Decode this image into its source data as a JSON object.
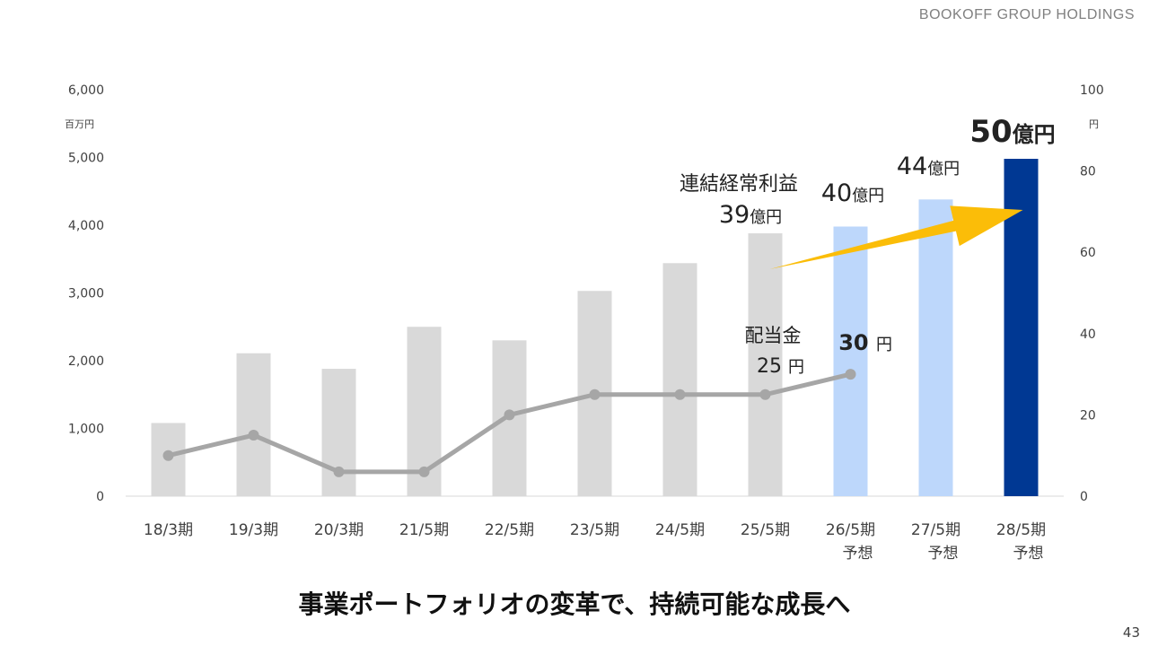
{
  "header": {
    "brand": "BOOKOFF GROUP HOLDINGS"
  },
  "chart_data": {
    "type": "bar",
    "categories": [
      "18/3期",
      "19/3期",
      "20/3期",
      "21/5期",
      "22/5期",
      "23/5期",
      "24/5期",
      "25/5期",
      "26/5期",
      "27/5期",
      "28/5期"
    ],
    "category_sublabels": [
      "",
      "",
      "",
      "",
      "",
      "",
      "",
      "",
      "予想",
      "予想",
      "予想"
    ],
    "series": [
      {
        "name": "連結経常利益",
        "axis": "left",
        "values": [
          1080,
          2110,
          1880,
          2500,
          2300,
          3030,
          3440,
          3880,
          3980,
          4380,
          4980
        ],
        "bar_colors": [
          "#d9d9d9",
          "#d9d9d9",
          "#d9d9d9",
          "#d9d9d9",
          "#d9d9d9",
          "#d9d9d9",
          "#d9d9d9",
          "#d9d9d9",
          "#bdd7fb",
          "#bdd7fb",
          "#003893"
        ]
      },
      {
        "name": "配当金",
        "axis": "right",
        "type": "line",
        "color": "#a6a6a6",
        "values": [
          10,
          15,
          6,
          6,
          20,
          25,
          25,
          25,
          30,
          null,
          null
        ]
      }
    ],
    "y_left": {
      "ticks": [
        "0",
        "1,000",
        "2,000",
        "3,000",
        "4,000",
        "5,000",
        "6,000"
      ],
      "unit": "百万円",
      "ylim": [
        0,
        6000
      ]
    },
    "y_right": {
      "ticks": [
        "0",
        "20",
        "40",
        "60",
        "80",
        "100"
      ],
      "unit": "円",
      "ylim": [
        0,
        100
      ]
    },
    "annotations": {
      "profit_label": "連結経常利益",
      "profit_values": [
        {
          "category_index": 7,
          "num": "39",
          "unit": "億円"
        },
        {
          "category_index": 8,
          "num": "40",
          "unit": "億円"
        },
        {
          "category_index": 9,
          "num": "44",
          "unit": "億円"
        },
        {
          "category_index": 10,
          "num": "50",
          "unit": "億円"
        }
      ],
      "dividend_label": "配当金",
      "dividend_values": [
        {
          "category_index": 7,
          "num": "25",
          "unit": "円"
        },
        {
          "category_index": 8,
          "num": "30",
          "unit": "円"
        }
      ]
    },
    "arrow_color": "#fbbd08",
    "grid": false
  },
  "footer": {
    "headline": "事業ポートフォリオの変革で、持続可能な成長へ",
    "page_number": "43"
  }
}
